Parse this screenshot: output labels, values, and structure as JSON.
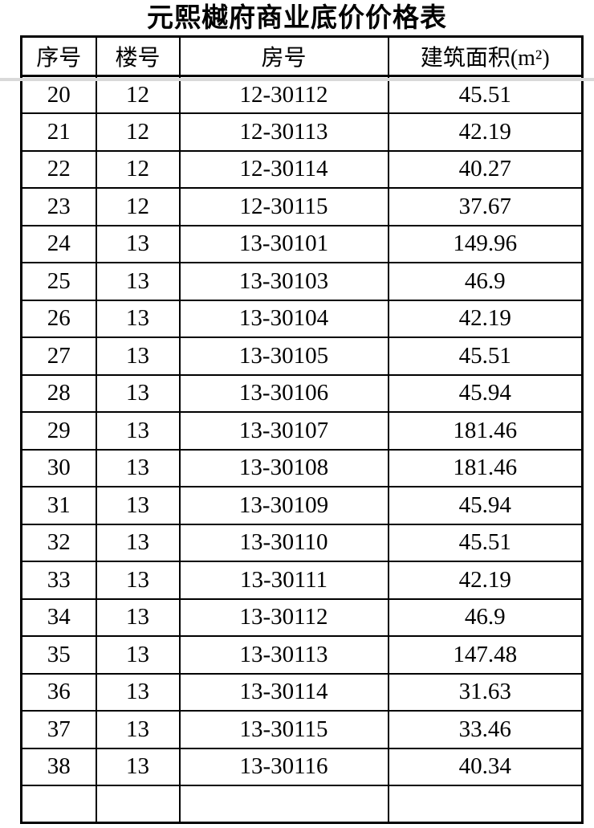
{
  "title": "元熙樾府商业底价价格表",
  "table": {
    "headers": [
      "序号",
      "楼号",
      "房号",
      "建筑面积(m²)"
    ],
    "rows": [
      [
        "20",
        "12",
        "12-30112",
        "45.51"
      ],
      [
        "21",
        "12",
        "12-30113",
        "42.19"
      ],
      [
        "22",
        "12",
        "12-30114",
        "40.27"
      ],
      [
        "23",
        "12",
        "12-30115",
        "37.67"
      ],
      [
        "24",
        "13",
        "13-30101",
        "149.96"
      ],
      [
        "25",
        "13",
        "13-30103",
        "46.9"
      ],
      [
        "26",
        "13",
        "13-30104",
        "42.19"
      ],
      [
        "27",
        "13",
        "13-30105",
        "45.51"
      ],
      [
        "28",
        "13",
        "13-30106",
        "45.94"
      ],
      [
        "29",
        "13",
        "13-30107",
        "181.46"
      ],
      [
        "30",
        "13",
        "13-30108",
        "181.46"
      ],
      [
        "31",
        "13",
        "13-30109",
        "45.94"
      ],
      [
        "32",
        "13",
        "13-30110",
        "45.51"
      ],
      [
        "33",
        "13",
        "13-30111",
        "42.19"
      ],
      [
        "34",
        "13",
        "13-30112",
        "46.9"
      ],
      [
        "35",
        "13",
        "13-30113",
        "147.48"
      ],
      [
        "36",
        "13",
        "13-30114",
        "31.63"
      ],
      [
        "37",
        "13",
        "13-30115",
        "33.46"
      ],
      [
        "38",
        "13",
        "13-30116",
        "40.34"
      ]
    ]
  },
  "colors": {
    "border": "#000000",
    "freeze_divider": "#d9d9d9",
    "text": "#000000",
    "background": "#ffffff"
  }
}
